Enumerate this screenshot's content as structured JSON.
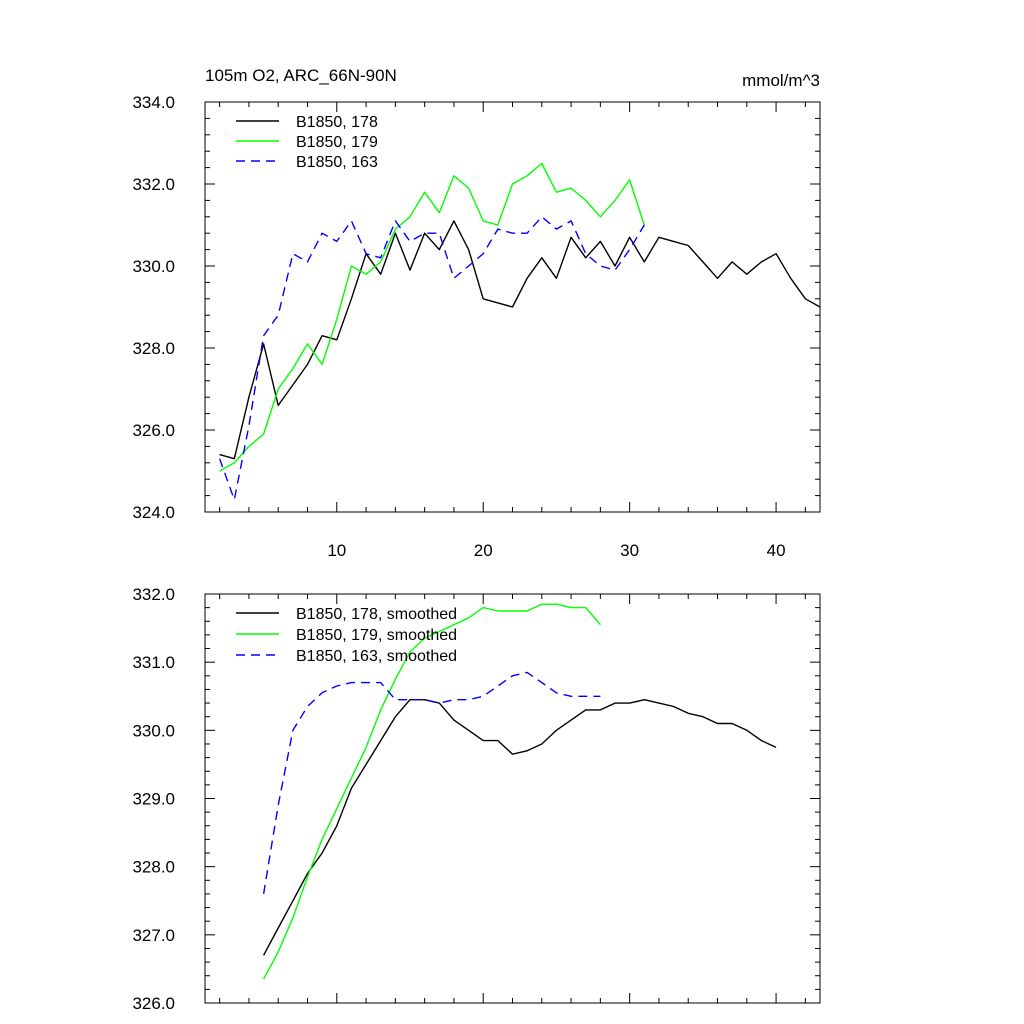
{
  "chart_data": [
    {
      "type": "line",
      "title_left": "105m O2, ARC_66N-90N",
      "title_right": "mmol/m^3",
      "xlabel": "",
      "ylabel": "",
      "xlim": [
        1,
        43
      ],
      "ylim": [
        324,
        334
      ],
      "x_ticks": [
        10,
        20,
        30,
        40
      ],
      "x_tick_labels": [
        "10",
        "20",
        "30",
        "40"
      ],
      "y_ticks": [
        324,
        326,
        328,
        330,
        332,
        334
      ],
      "y_tick_labels": [
        "324.0",
        "326.0",
        "328.0",
        "330.0",
        "332.0",
        "334.0"
      ],
      "legend_position": "top-left",
      "grid": false,
      "series": [
        {
          "name": "B1850, 178",
          "color": "#000000",
          "dash": "solid",
          "x": [
            2,
            3,
            4,
            5,
            6,
            7,
            8,
            9,
            10,
            11,
            12,
            13,
            14,
            15,
            16,
            17,
            18,
            19,
            20,
            21,
            22,
            23,
            24,
            25,
            26,
            27,
            28,
            29,
            30,
            31,
            32,
            33,
            34,
            35,
            36,
            37,
            38,
            39,
            40,
            41,
            42,
            43
          ],
          "y": [
            325.4,
            325.3,
            326.8,
            328.1,
            326.6,
            327.1,
            327.6,
            328.3,
            328.2,
            329.2,
            330.3,
            329.8,
            330.8,
            329.9,
            330.8,
            330.4,
            331.1,
            330.4,
            329.2,
            329.1,
            329.0,
            329.7,
            330.2,
            329.7,
            330.7,
            330.2,
            330.6,
            330.0,
            330.7,
            330.1,
            330.7,
            330.6,
            330.5,
            330.1,
            329.7,
            330.1,
            329.8,
            330.1,
            330.3,
            329.7,
            329.2,
            329.0
          ]
        },
        {
          "name": "B1850, 179",
          "color": "#00ff00",
          "dash": "solid",
          "x": [
            2,
            3,
            4,
            5,
            6,
            7,
            8,
            9,
            10,
            11,
            12,
            13,
            14,
            15,
            16,
            17,
            18,
            19,
            20,
            21,
            22,
            23,
            24,
            25,
            26,
            27,
            28,
            29,
            30,
            31
          ],
          "y": [
            325.0,
            325.2,
            325.6,
            325.9,
            327.0,
            327.5,
            328.1,
            327.6,
            328.7,
            330.0,
            329.8,
            330.1,
            330.9,
            331.2,
            331.8,
            331.3,
            332.2,
            331.9,
            331.1,
            331.0,
            332.0,
            332.2,
            332.5,
            331.8,
            331.9,
            331.6,
            331.2,
            331.6,
            332.1,
            331.0
          ]
        },
        {
          "name": "B1850, 163",
          "color": "#0000ff",
          "dash": "dashed",
          "x": [
            2,
            3,
            4,
            5,
            6,
            7,
            8,
            9,
            10,
            11,
            12,
            13,
            14,
            15,
            16,
            17,
            18,
            19,
            20,
            21,
            22,
            23,
            24,
            25,
            26,
            27,
            28,
            29,
            30,
            31
          ],
          "y": [
            325.3,
            324.3,
            326.1,
            328.3,
            328.8,
            330.3,
            330.1,
            330.8,
            330.6,
            331.1,
            330.3,
            330.2,
            331.1,
            330.6,
            330.8,
            330.8,
            329.7,
            330.0,
            330.3,
            330.9,
            330.8,
            330.8,
            331.2,
            330.9,
            331.1,
            330.3,
            330.0,
            329.9,
            330.4,
            331.0
          ]
        }
      ]
    },
    {
      "type": "line",
      "xlabel": "",
      "ylabel": "",
      "xlim": [
        1,
        43
      ],
      "ylim": [
        326,
        332
      ],
      "x_ticks": [
        10,
        20,
        30,
        40
      ],
      "x_tick_labels": [],
      "y_ticks": [
        326,
        327,
        328,
        329,
        330,
        331,
        332
      ],
      "y_tick_labels": [
        "326.0",
        "327.0",
        "328.0",
        "329.0",
        "330.0",
        "331.0",
        "332.0"
      ],
      "legend_position": "top-left",
      "grid": false,
      "series": [
        {
          "name": "B1850, 178, smoothed",
          "color": "#000000",
          "dash": "solid",
          "x": [
            5,
            6,
            7,
            8,
            9,
            10,
            11,
            12,
            13,
            14,
            15,
            16,
            17,
            18,
            19,
            20,
            21,
            22,
            23,
            24,
            25,
            26,
            27,
            28,
            29,
            30,
            31,
            32,
            33,
            34,
            35,
            36,
            37,
            38,
            39,
            40
          ],
          "y": [
            326.7,
            327.1,
            327.5,
            327.9,
            328.2,
            328.6,
            329.15,
            329.5,
            329.85,
            330.2,
            330.45,
            330.45,
            330.4,
            330.15,
            330.0,
            329.85,
            329.85,
            329.65,
            329.7,
            329.8,
            330.0,
            330.15,
            330.3,
            330.3,
            330.4,
            330.4,
            330.45,
            330.4,
            330.35,
            330.25,
            330.2,
            330.1,
            330.1,
            330.0,
            329.85,
            329.75
          ]
        },
        {
          "name": "B1850, 179, smoothed",
          "color": "#00ff00",
          "dash": "solid",
          "x": [
            5,
            6,
            7,
            8,
            9,
            10,
            11,
            12,
            13,
            14,
            15,
            16,
            17,
            18,
            19,
            20,
            21,
            22,
            23,
            24,
            25,
            26,
            27,
            28
          ],
          "y": [
            326.35,
            326.75,
            327.25,
            327.85,
            328.4,
            328.85,
            329.3,
            329.75,
            330.3,
            330.75,
            331.15,
            331.35,
            331.45,
            331.55,
            331.65,
            331.8,
            331.75,
            331.75,
            331.75,
            331.85,
            331.85,
            331.8,
            331.8,
            331.55
          ]
        },
        {
          "name": "B1850, 163, smoothed",
          "color": "#0000ff",
          "dash": "dashed",
          "x": [
            5,
            6,
            7,
            8,
            9,
            10,
            11,
            12,
            13,
            14,
            15,
            16,
            17,
            18,
            19,
            20,
            21,
            22,
            23,
            24,
            25,
            26,
            27,
            28
          ],
          "y": [
            327.6,
            328.9,
            330.0,
            330.35,
            330.55,
            330.65,
            330.7,
            330.7,
            330.7,
            330.45,
            330.45,
            330.45,
            330.4,
            330.45,
            330.45,
            330.5,
            330.65,
            330.8,
            330.85,
            330.7,
            330.55,
            330.5,
            330.5,
            330.5
          ]
        }
      ]
    }
  ]
}
